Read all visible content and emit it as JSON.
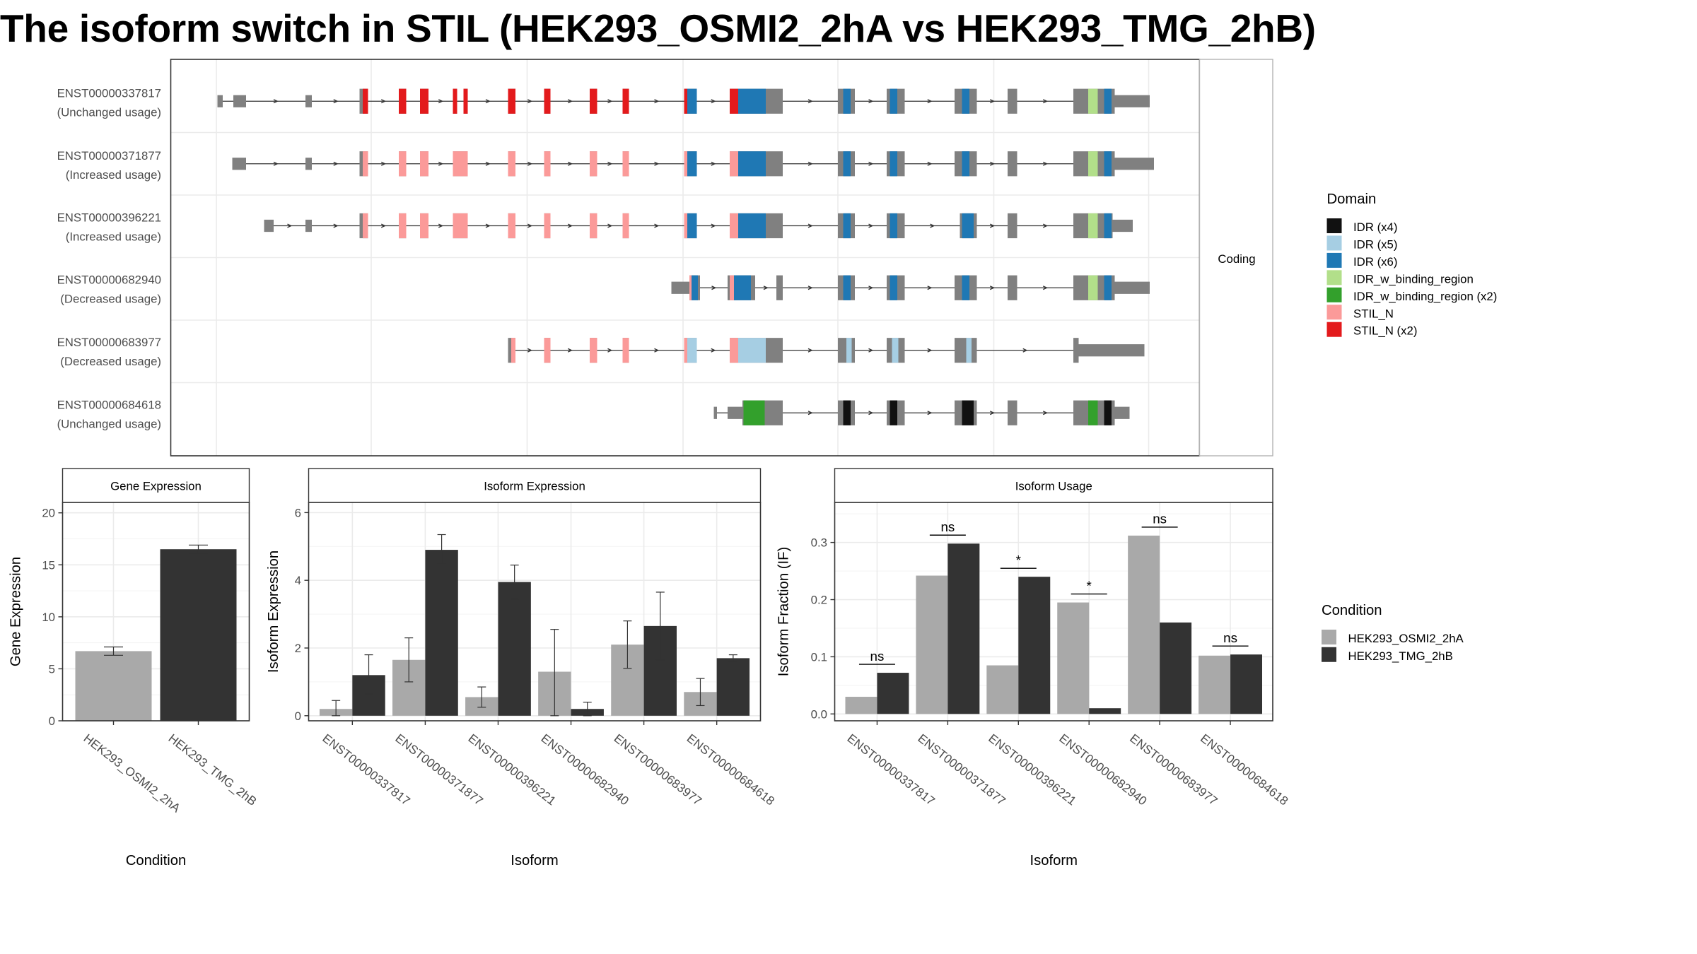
{
  "title": "The isoform switch in STIL (HEK293_OSMI2_2hA vs HEK293_TMG_2hB)",
  "colors": {
    "IDR (x4)": "#111111",
    "IDR (x5)": "#a6cee3",
    "IDR (x6)": "#1f78b4",
    "IDR_w_binding_region": "#b2df8a",
    "IDR_w_binding_region (x2)": "#33a02c",
    "STIL_N": "#fb9a99",
    "STIL_N (x2)": "#e31a1c",
    "exon": "#808080",
    "cond_a": "#a9a9a9",
    "cond_b": "#333333"
  },
  "structure": {
    "strip_label": "Coding",
    "legend_title": "Domain",
    "legend_items": [
      "IDR (x4)",
      "IDR (x5)",
      "IDR (x6)",
      "IDR_w_binding_region",
      "IDR_w_binding_region (x2)",
      "STIL_N",
      "STIL_N (x2)"
    ],
    "transcripts": [
      {
        "id": "ENST00000337817",
        "usage": "(Unchanged usage)",
        "exons": [
          [
            205,
            210,
            0
          ],
          [
            220,
            232,
            0
          ],
          [
            288,
            294,
            0
          ],
          [
            339,
            347,
            1
          ],
          [
            376,
            383,
            1
          ],
          [
            396,
            404,
            1
          ],
          [
            427,
            431,
            1
          ],
          [
            437,
            441,
            1
          ],
          [
            479,
            486,
            1
          ],
          [
            513,
            519,
            1
          ],
          [
            556,
            563,
            1
          ],
          [
            587,
            593,
            1
          ],
          [
            645,
            657,
            1
          ],
          [
            688,
            738,
            1
          ],
          [
            790,
            806,
            1
          ],
          [
            836,
            853,
            1
          ],
          [
            900,
            921,
            1
          ],
          [
            950,
            959,
            1
          ],
          [
            1012,
            1051,
            1
          ],
          [
            1051,
            1084,
            0
          ]
        ],
        "domains": [
          [
            342,
            347,
            "STIL_N (x2)"
          ],
          [
            376,
            383,
            "STIL_N (x2)"
          ],
          [
            396,
            404,
            "STIL_N (x2)"
          ],
          [
            427,
            431,
            "STIL_N (x2)"
          ],
          [
            437,
            441,
            "STIL_N (x2)"
          ],
          [
            479,
            486,
            "STIL_N (x2)"
          ],
          [
            513,
            519,
            "STIL_N (x2)"
          ],
          [
            556,
            563,
            "STIL_N (x2)"
          ],
          [
            587,
            593,
            "STIL_N (x2)"
          ],
          [
            645,
            648,
            "STIL_N (x2)"
          ],
          [
            648,
            657,
            "IDR (x6)"
          ],
          [
            688,
            696,
            "STIL_N (x2)"
          ],
          [
            696,
            722,
            "IDR (x6)"
          ],
          [
            795,
            802,
            "IDR (x6)"
          ],
          [
            839,
            846,
            "IDR (x6)"
          ],
          [
            907,
            914,
            "IDR (x6)"
          ],
          [
            1026,
            1035,
            "IDR_w_binding_region"
          ],
          [
            1041,
            1048,
            "IDR (x6)"
          ]
        ]
      },
      {
        "id": "ENST00000371877",
        "usage": "(Increased usage)",
        "exons": [
          [
            219,
            232,
            0
          ],
          [
            288,
            294,
            0
          ],
          [
            339,
            347,
            1
          ],
          [
            376,
            383,
            1
          ],
          [
            396,
            404,
            1
          ],
          [
            427,
            441,
            1
          ],
          [
            479,
            486,
            1
          ],
          [
            513,
            519,
            1
          ],
          [
            556,
            563,
            1
          ],
          [
            587,
            593,
            1
          ],
          [
            645,
            657,
            1
          ],
          [
            688,
            738,
            1
          ],
          [
            790,
            806,
            1
          ],
          [
            836,
            853,
            1
          ],
          [
            900,
            921,
            1
          ],
          [
            950,
            959,
            1
          ],
          [
            1012,
            1051,
            1
          ],
          [
            1051,
            1088,
            0
          ]
        ],
        "domains": [
          [
            342,
            347,
            "STIL_N"
          ],
          [
            376,
            383,
            "STIL_N"
          ],
          [
            396,
            404,
            "STIL_N"
          ],
          [
            427,
            441,
            "STIL_N"
          ],
          [
            479,
            486,
            "STIL_N"
          ],
          [
            513,
            519,
            "STIL_N"
          ],
          [
            556,
            563,
            "STIL_N"
          ],
          [
            587,
            593,
            "STIL_N"
          ],
          [
            645,
            648,
            "STIL_N"
          ],
          [
            648,
            657,
            "IDR (x6)"
          ],
          [
            688,
            696,
            "STIL_N"
          ],
          [
            696,
            722,
            "IDR (x6)"
          ],
          [
            795,
            802,
            "IDR (x6)"
          ],
          [
            839,
            846,
            "IDR (x6)"
          ],
          [
            907,
            914,
            "IDR (x6)"
          ],
          [
            1026,
            1035,
            "IDR_w_binding_region"
          ],
          [
            1041,
            1048,
            "IDR (x6)"
          ]
        ]
      },
      {
        "id": "ENST00000396221",
        "usage": "(Increased usage)",
        "exons": [
          [
            249,
            258,
            0
          ],
          [
            288,
            294,
            0
          ],
          [
            339,
            347,
            1
          ],
          [
            376,
            383,
            1
          ],
          [
            396,
            404,
            1
          ],
          [
            427,
            441,
            1
          ],
          [
            479,
            486,
            1
          ],
          [
            513,
            519,
            1
          ],
          [
            556,
            563,
            1
          ],
          [
            587,
            593,
            1
          ],
          [
            645,
            657,
            1
          ],
          [
            688,
            738,
            1
          ],
          [
            790,
            806,
            1
          ],
          [
            836,
            853,
            1
          ],
          [
            905,
            921,
            1
          ],
          [
            950,
            959,
            1
          ],
          [
            1012,
            1049,
            1
          ],
          [
            1049,
            1068,
            0
          ]
        ],
        "domains": [
          [
            342,
            347,
            "STIL_N"
          ],
          [
            376,
            383,
            "STIL_N"
          ],
          [
            396,
            404,
            "STIL_N"
          ],
          [
            427,
            441,
            "STIL_N"
          ],
          [
            479,
            486,
            "STIL_N"
          ],
          [
            513,
            519,
            "STIL_N"
          ],
          [
            556,
            563,
            "STIL_N"
          ],
          [
            587,
            593,
            "STIL_N"
          ],
          [
            645,
            648,
            "STIL_N"
          ],
          [
            648,
            657,
            "IDR (x6)"
          ],
          [
            688,
            696,
            "STIL_N"
          ],
          [
            696,
            722,
            "IDR (x6)"
          ],
          [
            795,
            802,
            "IDR (x6)"
          ],
          [
            839,
            846,
            "IDR (x6)"
          ],
          [
            907,
            918,
            "IDR (x6)"
          ],
          [
            1026,
            1035,
            "IDR_w_binding_region"
          ],
          [
            1041,
            1048,
            "IDR (x6)"
          ]
        ]
      },
      {
        "id": "ENST00000682940",
        "usage": "(Decreased usage)",
        "exons": [
          [
            633,
            650,
            0
          ],
          [
            650,
            660,
            1
          ],
          [
            686,
            712,
            1
          ],
          [
            732,
            738,
            1
          ],
          [
            790,
            806,
            1
          ],
          [
            836,
            853,
            1
          ],
          [
            900,
            921,
            1
          ],
          [
            950,
            959,
            1
          ],
          [
            1012,
            1051,
            1
          ],
          [
            1051,
            1084,
            0
          ]
        ],
        "domains": [
          [
            650,
            652,
            "STIL_N"
          ],
          [
            652,
            658,
            "IDR (x6)"
          ],
          [
            688,
            692,
            "STIL_N"
          ],
          [
            692,
            708,
            "IDR (x6)"
          ],
          [
            795,
            802,
            "IDR (x6)"
          ],
          [
            839,
            846,
            "IDR (x6)"
          ],
          [
            907,
            914,
            "IDR (x6)"
          ],
          [
            1026,
            1035,
            "IDR_w_binding_region"
          ],
          [
            1041,
            1048,
            "IDR (x6)"
          ]
        ]
      },
      {
        "id": "ENST00000683977",
        "usage": "(Decreased usage)",
        "exons": [
          [
            479,
            486,
            1
          ],
          [
            513,
            519,
            1
          ],
          [
            556,
            563,
            1
          ],
          [
            587,
            593,
            1
          ],
          [
            645,
            657,
            1
          ],
          [
            688,
            738,
            1
          ],
          [
            790,
            806,
            1
          ],
          [
            836,
            853,
            1
          ],
          [
            900,
            921,
            1
          ],
          [
            1012,
            1017,
            1
          ],
          [
            1017,
            1079,
            0
          ]
        ],
        "domains": [
          [
            482,
            486,
            "STIL_N"
          ],
          [
            513,
            519,
            "STIL_N"
          ],
          [
            556,
            563,
            "STIL_N"
          ],
          [
            587,
            593,
            "STIL_N"
          ],
          [
            645,
            648,
            "STIL_N"
          ],
          [
            648,
            657,
            "IDR (x5)"
          ],
          [
            688,
            696,
            "STIL_N"
          ],
          [
            696,
            722,
            "IDR (x5)"
          ],
          [
            798,
            803,
            "IDR (x5)"
          ],
          [
            841,
            847,
            "IDR (x5)"
          ],
          [
            911,
            916,
            "IDR (x5)"
          ]
        ]
      },
      {
        "id": "ENST00000684618",
        "usage": "(Unchanged usage)",
        "exons": [
          [
            673,
            676,
            0
          ],
          [
            686,
            700,
            0
          ],
          [
            700,
            738,
            1
          ],
          [
            790,
            806,
            1
          ],
          [
            836,
            853,
            1
          ],
          [
            900,
            921,
            1
          ],
          [
            950,
            959,
            1
          ],
          [
            1012,
            1051,
            1
          ],
          [
            1051,
            1065,
            0
          ]
        ],
        "domains": [
          [
            701,
            721,
            "IDR_w_binding_region (x2)"
          ],
          [
            795,
            802,
            "IDR (x4)"
          ],
          [
            839,
            846,
            "IDR (x4)"
          ],
          [
            907,
            918,
            "IDR (x4)"
          ],
          [
            1026,
            1035,
            "IDR_w_binding_region (x2)"
          ],
          [
            1041,
            1048,
            "IDR (x4)"
          ]
        ]
      }
    ]
  },
  "chart_data": [
    {
      "type": "bar",
      "title": "Gene Expression",
      "xlabel": "Condition",
      "ylabel": "Gene Expression",
      "categories": [
        "HEK293_OSMI2_2hA",
        "HEK293_TMG_2hB"
      ],
      "values": [
        6.7,
        16.5
      ],
      "errors": [
        [
          6.3,
          7.1
        ],
        [
          16.1,
          16.9
        ]
      ],
      "ylim": [
        0,
        21
      ],
      "yticks": [
        0,
        5,
        10,
        15,
        20
      ]
    },
    {
      "type": "bar",
      "title": "Isoform Expression",
      "xlabel": "Isoform",
      "ylabel": "Isoform Expression",
      "categories": [
        "ENST00000337817",
        "ENST00000371877",
        "ENST00000396221",
        "ENST00000682940",
        "ENST00000683977",
        "ENST00000684618"
      ],
      "series": [
        {
          "name": "HEK293_OSMI2_2hA",
          "values": [
            0.2,
            1.65,
            0.55,
            1.3,
            2.1,
            0.7
          ],
          "errors": [
            [
              0.0,
              0.45
            ],
            [
              1.0,
              2.3
            ],
            [
              0.25,
              0.85
            ],
            [
              0.0,
              2.55
            ],
            [
              1.4,
              2.8
            ],
            [
              0.3,
              1.1
            ]
          ]
        },
        {
          "name": "HEK293_TMG_2hB",
          "values": [
            1.2,
            4.9,
            3.95,
            0.2,
            2.65,
            1.7
          ],
          "errors": [
            [
              0.65,
              1.8
            ],
            [
              4.5,
              5.35
            ],
            [
              3.45,
              4.45
            ],
            [
              0.0,
              0.4
            ],
            [
              1.65,
              3.65
            ],
            [
              1.6,
              1.8
            ]
          ]
        }
      ],
      "ylim": [
        -0.15,
        6.3
      ],
      "yticks": [
        0,
        2,
        4,
        6
      ]
    },
    {
      "type": "bar",
      "title": "Isoform Usage",
      "xlabel": "Isoform",
      "ylabel": "Isoform Fraction (IF)",
      "categories": [
        "ENST00000337817",
        "ENST00000371877",
        "ENST00000396221",
        "ENST00000682940",
        "ENST00000683977",
        "ENST00000684618"
      ],
      "series": [
        {
          "name": "HEK293_OSMI2_2hA",
          "values": [
            0.03,
            0.242,
            0.085,
            0.195,
            0.312,
            0.102
          ]
        },
        {
          "name": "HEK293_TMG_2hB",
          "values": [
            0.072,
            0.298,
            0.24,
            0.01,
            0.16,
            0.104
          ]
        }
      ],
      "significance": [
        "ns",
        "ns",
        "*",
        "*",
        "ns",
        "ns"
      ],
      "ylim": [
        -0.012,
        0.37
      ],
      "yticks": [
        0.0,
        0.1,
        0.2,
        0.3
      ],
      "yticklabels": [
        "0.0",
        "0.1",
        "0.2",
        "0.3"
      ]
    }
  ],
  "condition_legend": {
    "title": "Condition",
    "items": [
      "HEK293_OSMI2_2hA",
      "HEK293_TMG_2hB"
    ]
  }
}
